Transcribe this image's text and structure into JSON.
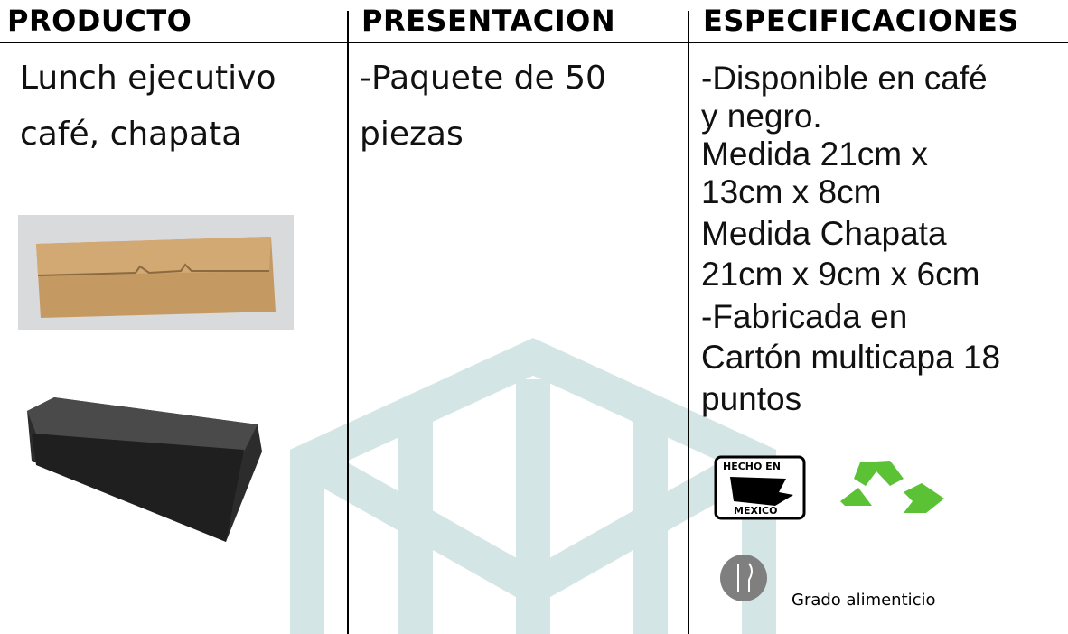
{
  "header": {
    "columns": [
      "PRODUCTO",
      "PRESENTACION",
      "ESPECIFICACIONES"
    ]
  },
  "product": {
    "name_lines": [
      "Lunch ejecutivo",
      "café, chapata"
    ]
  },
  "presentation": {
    "lines": [
      "-Paquete de 50",
      "piezas"
    ]
  },
  "specifications": {
    "lines": [
      "-Disponible en café",
      "y negro.",
      "Medida 21cm x",
      "13cm x 8cm",
      "Medida Chapata",
      "21cm x 9cm x 6cm",
      "-Fabricada en",
      "Cartón multicapa 18",
      "puntos"
    ]
  },
  "badges": {
    "made_in_top": "HECHO EN",
    "made_in_bottom": "MEXICO",
    "food_grade": "Grado alimenticio"
  }
}
